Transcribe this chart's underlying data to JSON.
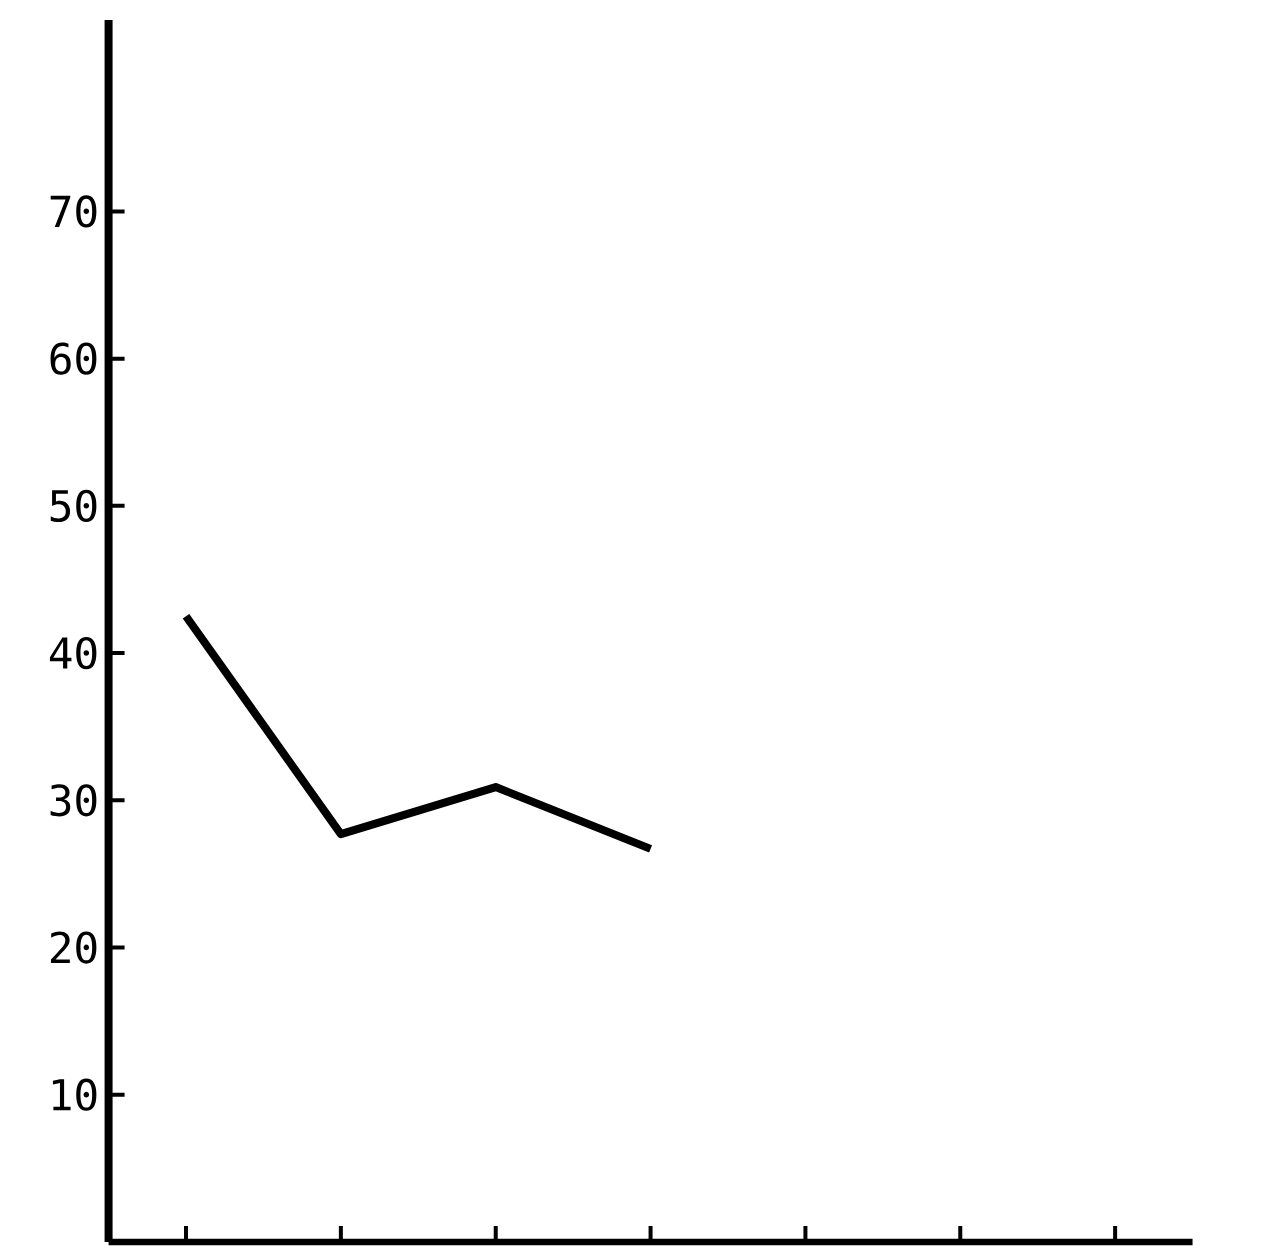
{
  "chart_data": {
    "type": "line",
    "categories": [
      null,
      null,
      null,
      null,
      null,
      null,
      null
    ],
    "values": [
      42.5,
      27.7,
      30.9,
      26.7,
      null,
      null,
      null
    ],
    "color": "#000000",
    "ylim": [
      0,
      83
    ],
    "yticks": [
      10,
      20,
      30,
      40,
      50,
      60,
      70
    ],
    "grid": false,
    "legend": false,
    "marker": "none",
    "line_style": "solid"
  }
}
